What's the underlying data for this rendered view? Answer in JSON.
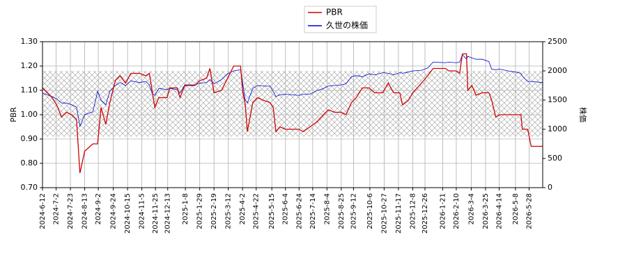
{
  "chart_data": {
    "type": "line",
    "legend": "top-center",
    "ylabel": "PBR",
    "y2label": "株価",
    "xlim": [
      "2024-6-12",
      "2026-6-17"
    ],
    "xticks": [
      "2024-6-12",
      "2024-7-2",
      "2024-7-23",
      "2024-8-13",
      "2024-9-2",
      "2024-9-24",
      "2024-10-15",
      "2024-11-5",
      "2024-11-25",
      "2024-12-13",
      "2025-1-8",
      "2025-1-29",
      "2025-2-19",
      "2025-3-12",
      "2025-4-2",
      "2025-4-22",
      "2025-5-15",
      "2025-6-4",
      "2025-6-24",
      "2025-7-14",
      "2025-8-4",
      "2025-8-25",
      "2025-9-12",
      "2025-10-6",
      "2025-10-27",
      "2025-11-17",
      "2025-12-8",
      "2025-12-26",
      "2026-1-21",
      "2026-2-10",
      "2026-3-4",
      "2026-3-25",
      "2026-4-14",
      "2026-5-8",
      "2026-5-28"
    ],
    "ylim": [
      0.7,
      1.3
    ],
    "yticks": [
      {
        "value": 0.7,
        "label": "0.70"
      },
      {
        "value": 0.8,
        "label": "0.80"
      },
      {
        "value": 0.9,
        "label": "0.90"
      },
      {
        "value": 1.0,
        "label": "1.00"
      },
      {
        "value": 1.1,
        "label": "1.10"
      },
      {
        "value": 1.2,
        "label": "1.20"
      },
      {
        "value": 1.3,
        "label": "1.30"
      }
    ],
    "y2lim": [
      0,
      2500
    ],
    "y2ticks": [
      0,
      500,
      1000,
      1500,
      2000,
      2500
    ],
    "grid": true,
    "shaded_range": [
      0.91,
      1.18
    ],
    "x": [
      "2024-6-12",
      "2024-6-26",
      "2024-7-3",
      "2024-7-10",
      "2024-7-17",
      "2024-7-25",
      "2024-8-1",
      "2024-8-6",
      "2024-8-13",
      "2024-8-25",
      "2024-9-1",
      "2024-9-6",
      "2024-9-13",
      "2024-9-19",
      "2024-9-27",
      "2024-10-4",
      "2024-10-12",
      "2024-10-20",
      "2024-11-1",
      "2024-11-11",
      "2024-11-16",
      "2024-11-20",
      "2024-11-24",
      "2024-11-30",
      "2024-12-12",
      "2024-12-16",
      "2024-12-27",
      "2024-12-31",
      "2025-1-7",
      "2025-1-22",
      "2025-1-29",
      "2025-2-8",
      "2025-2-13",
      "2025-2-19",
      "2025-3-2",
      "2025-3-11",
      "2025-3-20",
      "2025-3-30",
      "2025-4-2",
      "2025-4-6",
      "2025-4-9",
      "2025-4-17",
      "2025-4-24",
      "2025-5-2",
      "2025-5-12",
      "2025-5-17",
      "2025-5-21",
      "2025-5-27",
      "2025-6-4",
      "2025-6-24",
      "2025-6-30",
      "2025-7-10",
      "2025-7-20",
      "2025-7-30",
      "2025-8-6",
      "2025-8-15",
      "2025-8-25",
      "2025-9-1",
      "2025-9-9",
      "2025-9-16",
      "2025-9-25",
      "2025-10-5",
      "2025-10-13",
      "2025-10-25",
      "2025-11-2",
      "2025-11-10",
      "2025-11-19",
      "2025-11-23",
      "2025-12-2",
      "2025-12-8",
      "2025-12-21",
      "2025-12-30",
      "2026-1-7",
      "2026-1-25",
      "2026-1-30",
      "2026-2-10",
      "2026-2-15",
      "2026-2-19",
      "2026-2-25",
      "2026-2-27",
      "2026-3-5",
      "2026-3-11",
      "2026-3-20",
      "2026-3-30",
      "2026-4-3",
      "2026-4-9",
      "2026-4-15",
      "2026-4-27",
      "2026-5-8",
      "2026-5-16",
      "2026-5-18",
      "2026-5-26",
      "2026-5-31",
      "2026-6-17"
    ],
    "series": [
      {
        "name": "PBR",
        "color": "#cc0000",
        "axis": "y",
        "values": [
          1.11,
          1.07,
          1.04,
          0.99,
          1.01,
          1.0,
          0.98,
          0.76,
          0.85,
          0.88,
          0.88,
          1.03,
          0.96,
          1.05,
          1.14,
          1.16,
          1.13,
          1.17,
          1.17,
          1.16,
          1.17,
          1.1,
          1.03,
          1.07,
          1.07,
          1.11,
          1.11,
          1.07,
          1.12,
          1.12,
          1.14,
          1.15,
          1.19,
          1.09,
          1.1,
          1.15,
          1.2,
          1.2,
          1.1,
          1.04,
          0.93,
          1.05,
          1.07,
          1.06,
          1.05,
          1.03,
          0.93,
          0.95,
          0.94,
          0.94,
          0.93,
          0.95,
          0.97,
          1.0,
          1.02,
          1.01,
          1.01,
          1.0,
          1.05,
          1.07,
          1.11,
          1.11,
          1.09,
          1.09,
          1.13,
          1.09,
          1.09,
          1.04,
          1.06,
          1.09,
          1.13,
          1.16,
          1.19,
          1.19,
          1.18,
          1.18,
          1.17,
          1.25,
          1.25,
          1.1,
          1.12,
          1.08,
          1.09,
          1.09,
          1.06,
          0.99,
          1.0,
          1.0,
          1.0,
          1.0,
          0.94,
          0.94,
          0.87,
          0.87
        ]
      },
      {
        "name": "久世の株価",
        "color": "#0000cc",
        "axis": "y2",
        "values": [
          1620,
          1560,
          1520,
          1450,
          1450,
          1420,
          1380,
          1050,
          1250,
          1300,
          1650,
          1500,
          1420,
          1650,
          1750,
          1800,
          1750,
          1830,
          1800,
          1820,
          1760,
          1620,
          1580,
          1700,
          1680,
          1700,
          1680,
          1620,
          1760,
          1760,
          1790,
          1800,
          1850,
          1780,
          1850,
          1950,
          2000,
          2020,
          1800,
          1500,
          1450,
          1700,
          1750,
          1740,
          1740,
          1650,
          1560,
          1590,
          1600,
          1580,
          1600,
          1600,
          1660,
          1700,
          1740,
          1750,
          1760,
          1780,
          1900,
          1920,
          1900,
          1950,
          1930,
          1970,
          1960,
          1930,
          1970,
          1960,
          1980,
          2000,
          2010,
          2050,
          2150,
          2140,
          2150,
          2140,
          2150,
          2280,
          2200,
          2250,
          2220,
          2200,
          2200,
          2160,
          2030,
          2020,
          2030,
          2000,
          1980,
          1960,
          1910,
          1820,
          1820,
          1800
        ]
      }
    ]
  }
}
